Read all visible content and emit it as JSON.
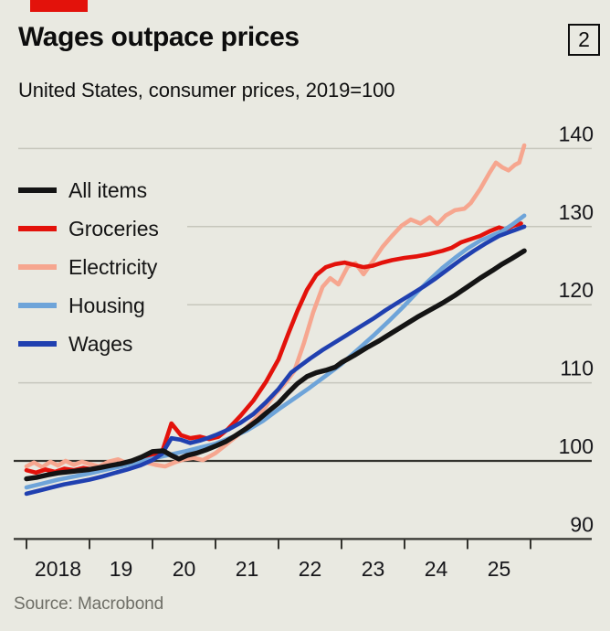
{
  "brand": {
    "accent_color": "#e3120b"
  },
  "header": {
    "title": "Wages outpace prices",
    "figure_number": "2",
    "subtitle": "United States, consumer prices, 2019=100"
  },
  "legend": {
    "items": [
      {
        "label": "All items",
        "color": "#141414"
      },
      {
        "label": "Groceries",
        "color": "#e3120b"
      },
      {
        "label": "Electricity",
        "color": "#f6a68f"
      },
      {
        "label": "Housing",
        "color": "#6ea4d9"
      },
      {
        "label": "Wages",
        "color": "#2040b0"
      }
    ]
  },
  "source": {
    "label": "Source: Macrobond"
  },
  "chart_data": {
    "type": "line",
    "title": "Wages outpace prices",
    "subtitle": "United States, consumer prices, 2019=100",
    "grid": true,
    "legend_position": "inside-left",
    "x_axis": {
      "range": [
        2018,
        2026
      ],
      "tick_years": [
        2018,
        2019,
        2020,
        2021,
        2022,
        2023,
        2024,
        2025,
        2026
      ],
      "tick_labels": [
        "2018",
        "19",
        "20",
        "21",
        "22",
        "23",
        "24",
        "25"
      ],
      "label_placement": "between-ticks"
    },
    "y_axis": {
      "range": [
        90,
        140
      ],
      "ticks": [
        90,
        100,
        110,
        120,
        130,
        140
      ],
      "baseline": 100,
      "side": "right",
      "short_grid": [
        120,
        130
      ]
    },
    "series": [
      {
        "name": "Electricity",
        "color": "#f6a68f",
        "stroke_width": 4.6,
        "points": [
          [
            2018.0,
            99.3
          ],
          [
            2018.12,
            99.8
          ],
          [
            2018.25,
            99.2
          ],
          [
            2018.38,
            99.9
          ],
          [
            2018.5,
            99.4
          ],
          [
            2018.62,
            100.0
          ],
          [
            2018.75,
            99.5
          ],
          [
            2018.88,
            99.9
          ],
          [
            2019.0,
            99.6
          ],
          [
            2019.15,
            99.3
          ],
          [
            2019.3,
            99.9
          ],
          [
            2019.45,
            100.2
          ],
          [
            2019.6,
            99.7
          ],
          [
            2019.75,
            100.1
          ],
          [
            2019.9,
            99.8
          ],
          [
            2020.05,
            99.5
          ],
          [
            2020.2,
            99.3
          ],
          [
            2020.35,
            99.8
          ],
          [
            2020.5,
            100.2
          ],
          [
            2020.65,
            100.4
          ],
          [
            2020.8,
            100.1
          ],
          [
            2021.0,
            101.0
          ],
          [
            2021.2,
            102.3
          ],
          [
            2021.4,
            103.6
          ],
          [
            2021.6,
            105.1
          ],
          [
            2021.8,
            107.0
          ],
          [
            2021.95,
            108.6
          ],
          [
            2022.1,
            109.9
          ],
          [
            2022.25,
            111.5
          ],
          [
            2022.4,
            115.0
          ],
          [
            2022.55,
            119.0
          ],
          [
            2022.7,
            122.3
          ],
          [
            2022.82,
            123.4
          ],
          [
            2022.95,
            122.6
          ],
          [
            2023.1,
            124.9
          ],
          [
            2023.22,
            125.3
          ],
          [
            2023.35,
            123.9
          ],
          [
            2023.5,
            125.6
          ],
          [
            2023.65,
            127.4
          ],
          [
            2023.8,
            128.8
          ],
          [
            2023.95,
            130.1
          ],
          [
            2024.1,
            130.9
          ],
          [
            2024.25,
            130.4
          ],
          [
            2024.4,
            131.2
          ],
          [
            2024.52,
            130.3
          ],
          [
            2024.65,
            131.4
          ],
          [
            2024.8,
            132.1
          ],
          [
            2024.95,
            132.3
          ],
          [
            2025.05,
            133.0
          ],
          [
            2025.2,
            134.8
          ],
          [
            2025.35,
            136.9
          ],
          [
            2025.45,
            138.2
          ],
          [
            2025.55,
            137.6
          ],
          [
            2025.65,
            137.2
          ],
          [
            2025.75,
            137.9
          ],
          [
            2025.82,
            138.2
          ],
          [
            2025.9,
            140.4
          ]
        ]
      },
      {
        "name": "Groceries",
        "color": "#e3120b",
        "stroke_width": 4.6,
        "points": [
          [
            2018.0,
            98.8
          ],
          [
            2018.15,
            98.5
          ],
          [
            2018.3,
            98.9
          ],
          [
            2018.45,
            98.6
          ],
          [
            2018.6,
            99.0
          ],
          [
            2018.75,
            98.8
          ],
          [
            2018.9,
            99.1
          ],
          [
            2019.05,
            98.9
          ],
          [
            2019.2,
            99.2
          ],
          [
            2019.35,
            99.4
          ],
          [
            2019.5,
            99.7
          ],
          [
            2019.65,
            99.9
          ],
          [
            2019.8,
            100.1
          ],
          [
            2020.0,
            100.7
          ],
          [
            2020.15,
            101.1
          ],
          [
            2020.3,
            104.8
          ],
          [
            2020.45,
            103.3
          ],
          [
            2020.6,
            102.9
          ],
          [
            2020.75,
            103.1
          ],
          [
            2020.9,
            102.8
          ],
          [
            2021.05,
            103.1
          ],
          [
            2021.2,
            104.1
          ],
          [
            2021.4,
            105.8
          ],
          [
            2021.6,
            107.7
          ],
          [
            2021.8,
            110.1
          ],
          [
            2022.0,
            113.0
          ],
          [
            2022.15,
            116.2
          ],
          [
            2022.3,
            119.2
          ],
          [
            2022.45,
            121.9
          ],
          [
            2022.6,
            123.8
          ],
          [
            2022.75,
            124.8
          ],
          [
            2022.9,
            125.2
          ],
          [
            2023.05,
            125.4
          ],
          [
            2023.2,
            125.1
          ],
          [
            2023.35,
            124.8
          ],
          [
            2023.5,
            125.0
          ],
          [
            2023.65,
            125.4
          ],
          [
            2023.8,
            125.7
          ],
          [
            2024.0,
            126.0
          ],
          [
            2024.2,
            126.2
          ],
          [
            2024.4,
            126.5
          ],
          [
            2024.6,
            126.9
          ],
          [
            2024.75,
            127.3
          ],
          [
            2024.9,
            128.0
          ],
          [
            2025.05,
            128.4
          ],
          [
            2025.2,
            128.8
          ],
          [
            2025.35,
            129.4
          ],
          [
            2025.5,
            129.9
          ],
          [
            2025.6,
            129.6
          ],
          [
            2025.72,
            130.1
          ],
          [
            2025.85,
            130.4
          ]
        ]
      },
      {
        "name": "Housing",
        "color": "#6ea4d9",
        "stroke_width": 4.6,
        "points": [
          [
            2018.0,
            96.6
          ],
          [
            2018.25,
            97.1
          ],
          [
            2018.5,
            97.6
          ],
          [
            2018.75,
            98.0
          ],
          [
            2019.0,
            98.4
          ],
          [
            2019.25,
            98.85
          ],
          [
            2019.5,
            99.3
          ],
          [
            2019.75,
            99.8
          ],
          [
            2020.0,
            100.3
          ],
          [
            2020.25,
            100.75
          ],
          [
            2020.5,
            101.2
          ],
          [
            2020.75,
            101.7
          ],
          [
            2021.0,
            102.2
          ],
          [
            2021.25,
            103.0
          ],
          [
            2021.5,
            103.9
          ],
          [
            2021.75,
            105.1
          ],
          [
            2022.0,
            106.6
          ],
          [
            2022.25,
            108.0
          ],
          [
            2022.5,
            109.4
          ],
          [
            2022.75,
            110.9
          ],
          [
            2023.0,
            112.4
          ],
          [
            2023.25,
            114.2
          ],
          [
            2023.5,
            116.0
          ],
          [
            2023.75,
            117.9
          ],
          [
            2024.0,
            119.9
          ],
          [
            2024.2,
            121.6
          ],
          [
            2024.4,
            123.2
          ],
          [
            2024.6,
            124.7
          ],
          [
            2024.8,
            126.0
          ],
          [
            2025.0,
            127.2
          ],
          [
            2025.2,
            128.2
          ],
          [
            2025.4,
            128.9
          ],
          [
            2025.55,
            129.4
          ],
          [
            2025.7,
            130.2
          ],
          [
            2025.8,
            130.8
          ],
          [
            2025.9,
            131.4
          ]
        ]
      },
      {
        "name": "Wages",
        "color": "#2040b0",
        "stroke_width": 4.6,
        "points": [
          [
            2018.0,
            95.8
          ],
          [
            2018.2,
            96.2
          ],
          [
            2018.4,
            96.6
          ],
          [
            2018.6,
            97.0
          ],
          [
            2018.8,
            97.3
          ],
          [
            2019.0,
            97.6
          ],
          [
            2019.2,
            98.0
          ],
          [
            2019.4,
            98.45
          ],
          [
            2019.6,
            98.9
          ],
          [
            2019.8,
            99.4
          ],
          [
            2020.0,
            100.1
          ],
          [
            2020.15,
            100.9
          ],
          [
            2020.3,
            102.9
          ],
          [
            2020.45,
            102.7
          ],
          [
            2020.6,
            102.3
          ],
          [
            2020.75,
            102.6
          ],
          [
            2020.9,
            103.0
          ],
          [
            2021.0,
            103.3
          ],
          [
            2021.2,
            104.0
          ],
          [
            2021.4,
            104.9
          ],
          [
            2021.6,
            106.0
          ],
          [
            2021.8,
            107.5
          ],
          [
            2022.0,
            109.2
          ],
          [
            2022.2,
            111.3
          ],
          [
            2022.35,
            112.2
          ],
          [
            2022.5,
            113.1
          ],
          [
            2022.7,
            114.2
          ],
          [
            2022.9,
            115.2
          ],
          [
            2023.1,
            116.2
          ],
          [
            2023.3,
            117.2
          ],
          [
            2023.5,
            118.2
          ],
          [
            2023.7,
            119.3
          ],
          [
            2023.9,
            120.3
          ],
          [
            2024.1,
            121.3
          ],
          [
            2024.3,
            122.3
          ],
          [
            2024.5,
            123.4
          ],
          [
            2024.7,
            124.6
          ],
          [
            2024.9,
            125.8
          ],
          [
            2025.1,
            126.9
          ],
          [
            2025.3,
            127.9
          ],
          [
            2025.5,
            128.8
          ],
          [
            2025.7,
            129.4
          ],
          [
            2025.9,
            130.0
          ]
        ]
      },
      {
        "name": "All items",
        "color": "#141414",
        "stroke_width": 5.4,
        "points": [
          [
            2018.0,
            97.7
          ],
          [
            2018.17,
            97.9
          ],
          [
            2018.33,
            98.2
          ],
          [
            2018.5,
            98.45
          ],
          [
            2018.67,
            98.6
          ],
          [
            2018.83,
            98.75
          ],
          [
            2019.0,
            98.9
          ],
          [
            2019.17,
            99.15
          ],
          [
            2019.33,
            99.4
          ],
          [
            2019.5,
            99.65
          ],
          [
            2019.67,
            100.0
          ],
          [
            2019.83,
            100.5
          ],
          [
            2020.0,
            101.2
          ],
          [
            2020.17,
            101.3
          ],
          [
            2020.3,
            100.7
          ],
          [
            2020.42,
            100.25
          ],
          [
            2020.55,
            100.7
          ],
          [
            2020.7,
            101.0
          ],
          [
            2020.85,
            101.4
          ],
          [
            2021.0,
            101.9
          ],
          [
            2021.17,
            102.5
          ],
          [
            2021.33,
            103.3
          ],
          [
            2021.5,
            104.2
          ],
          [
            2021.67,
            105.2
          ],
          [
            2021.83,
            106.3
          ],
          [
            2022.0,
            107.4
          ],
          [
            2022.15,
            108.7
          ],
          [
            2022.3,
            109.9
          ],
          [
            2022.45,
            110.8
          ],
          [
            2022.6,
            111.3
          ],
          [
            2022.75,
            111.6
          ],
          [
            2022.9,
            112.0
          ],
          [
            2023.0,
            112.6
          ],
          [
            2023.2,
            113.5
          ],
          [
            2023.4,
            114.5
          ],
          [
            2023.6,
            115.4
          ],
          [
            2023.8,
            116.4
          ],
          [
            2024.0,
            117.4
          ],
          [
            2024.2,
            118.4
          ],
          [
            2024.4,
            119.3
          ],
          [
            2024.6,
            120.2
          ],
          [
            2024.8,
            121.2
          ],
          [
            2025.0,
            122.3
          ],
          [
            2025.2,
            123.4
          ],
          [
            2025.4,
            124.4
          ],
          [
            2025.55,
            125.2
          ],
          [
            2025.7,
            125.9
          ],
          [
            2025.9,
            126.9
          ]
        ]
      }
    ]
  }
}
